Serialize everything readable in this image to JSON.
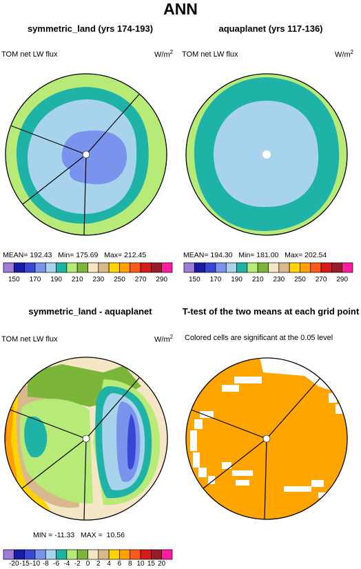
{
  "figure": {
    "title": "ANN"
  },
  "panels": [
    {
      "title": "symmetric_land (yrs 174-193)",
      "variable": "TOM net LW flux",
      "units": "W/m",
      "units_sup": "2",
      "stats": {
        "mean_label": "MEAN=",
        "mean": "192.43",
        "min_label": "Min=",
        "min": "175.69",
        "max_label": "Max=",
        "max": "212.45"
      }
    },
    {
      "title": "aquaplanet (yrs 117-136)",
      "variable": "TOM net LW flux",
      "units": "W/m",
      "units_sup": "2",
      "stats": {
        "mean_label": "MEAN=",
        "mean": "194.30",
        "min_label": "Min=",
        "min": "181.00",
        "max_label": "Max=",
        "max": "202.54"
      }
    },
    {
      "title": "symmetric_land - aquaplanet",
      "variable": "TOM net LW flux",
      "units": "W/m",
      "units_sup": "2",
      "stats": {
        "min_label": "MIN =",
        "min": "-11.33",
        "max_label": "MAX =",
        "max": "10.56"
      }
    },
    {
      "title": "T-test of the two means at each grid point",
      "note": "Colored cells are significant at the 0.05 level"
    }
  ],
  "colorbar_abs": {
    "colors": [
      "#9e7bd6",
      "#1a1aa8",
      "#3a46d6",
      "#7a93ec",
      "#a7d3ec",
      "#1fb3a8",
      "#b8ea78",
      "#7bb63a",
      "#f5e6c6",
      "#d8b98c",
      "#ffd400",
      "#ffa000",
      "#ff5a1a",
      "#d81a1a",
      "#9a1a2a",
      "#ff1aa0"
    ],
    "tick_labels": [
      "150",
      "170",
      "190",
      "210",
      "230",
      "250",
      "270",
      "290"
    ]
  },
  "colorbar_diff": {
    "colors": [
      "#9e7bd6",
      "#1a1aa8",
      "#3a46d6",
      "#7a93ec",
      "#a7d3ec",
      "#1fb3a8",
      "#b8ea78",
      "#7bb63a",
      "#f5e6c6",
      "#d8b98c",
      "#ffd400",
      "#ffa000",
      "#ff5a1a",
      "#d81a1a",
      "#9a1a2a",
      "#ff1aa0"
    ],
    "tick_labels": [
      "-20",
      "-15",
      "-10",
      "-8",
      "-6",
      "-4",
      "-2",
      "0",
      "2",
      "4",
      "6",
      "8",
      "10",
      "15",
      "20"
    ]
  },
  "chart_data": [
    {
      "type": "heatmap",
      "title": "symmetric_land (yrs 174-193)",
      "variable": "TOM net LW flux",
      "units": "W/m2",
      "projection": "polar",
      "mean": 192.43,
      "min": 175.69,
      "max": 212.45,
      "levels": [
        150,
        160,
        170,
        180,
        190,
        200,
        210,
        220,
        230,
        240,
        250,
        260,
        270,
        280,
        290
      ]
    },
    {
      "type": "heatmap",
      "title": "aquaplanet (yrs 117-136)",
      "variable": "TOM net LW flux",
      "units": "W/m2",
      "projection": "polar",
      "mean": 194.3,
      "min": 181.0,
      "max": 202.54,
      "levels": [
        150,
        160,
        170,
        180,
        190,
        200,
        210,
        220,
        230,
        240,
        250,
        260,
        270,
        280,
        290
      ]
    },
    {
      "type": "heatmap",
      "title": "symmetric_land - aquaplanet",
      "variable": "TOM net LW flux",
      "units": "W/m2",
      "projection": "polar",
      "min": -11.33,
      "max": 10.56,
      "levels": [
        -20,
        -15,
        -10,
        -8,
        -6,
        -4,
        -2,
        0,
        2,
        4,
        6,
        8,
        10,
        15,
        20
      ]
    },
    {
      "type": "heatmap",
      "title": "T-test of the two means at each grid point",
      "note": "Colored cells are significant at the 0.05 level",
      "projection": "polar",
      "significance_level": 0.05
    }
  ]
}
